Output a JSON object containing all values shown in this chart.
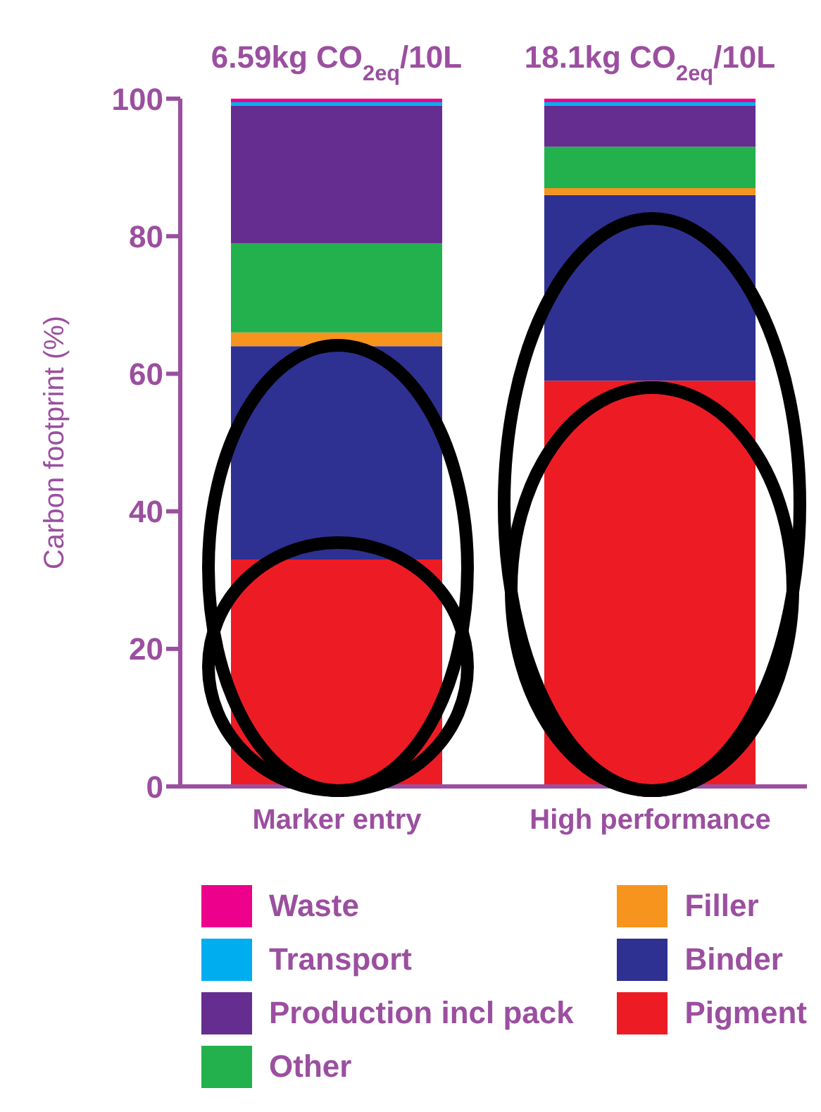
{
  "chart_data": {
    "type": "bar",
    "stacked": true,
    "ylabel": "Carbon footprint (%)",
    "categories": [
      "Marker entry",
      "High performance"
    ],
    "ylim": [
      0,
      100
    ],
    "yticks": [
      0,
      20,
      40,
      60,
      80,
      100
    ],
    "legend": "bottom",
    "series": [
      {
        "name": "Pigment",
        "color": "#ed1c24",
        "values": [
          33,
          59
        ]
      },
      {
        "name": "Binder",
        "color": "#2e3192",
        "values": [
          31,
          27
        ]
      },
      {
        "name": "Filler",
        "color": "#f7941d",
        "values": [
          2,
          1
        ]
      },
      {
        "name": "Other",
        "color": "#22b14c",
        "values": [
          13,
          6
        ]
      },
      {
        "name": "Production incl pack",
        "color": "#662d91",
        "values": [
          20,
          6
        ]
      },
      {
        "name": "Transport",
        "color": "#00aeef",
        "values": [
          0.5,
          0.5
        ]
      },
      {
        "name": "Waste",
        "color": "#ec008c",
        "values": [
          0.5,
          0.5
        ]
      }
    ],
    "annotations": [
      "6.59kg CO$_{2eq}$/10L",
      "18.1kg CO$_{2eq}$/10L"
    ]
  }
}
